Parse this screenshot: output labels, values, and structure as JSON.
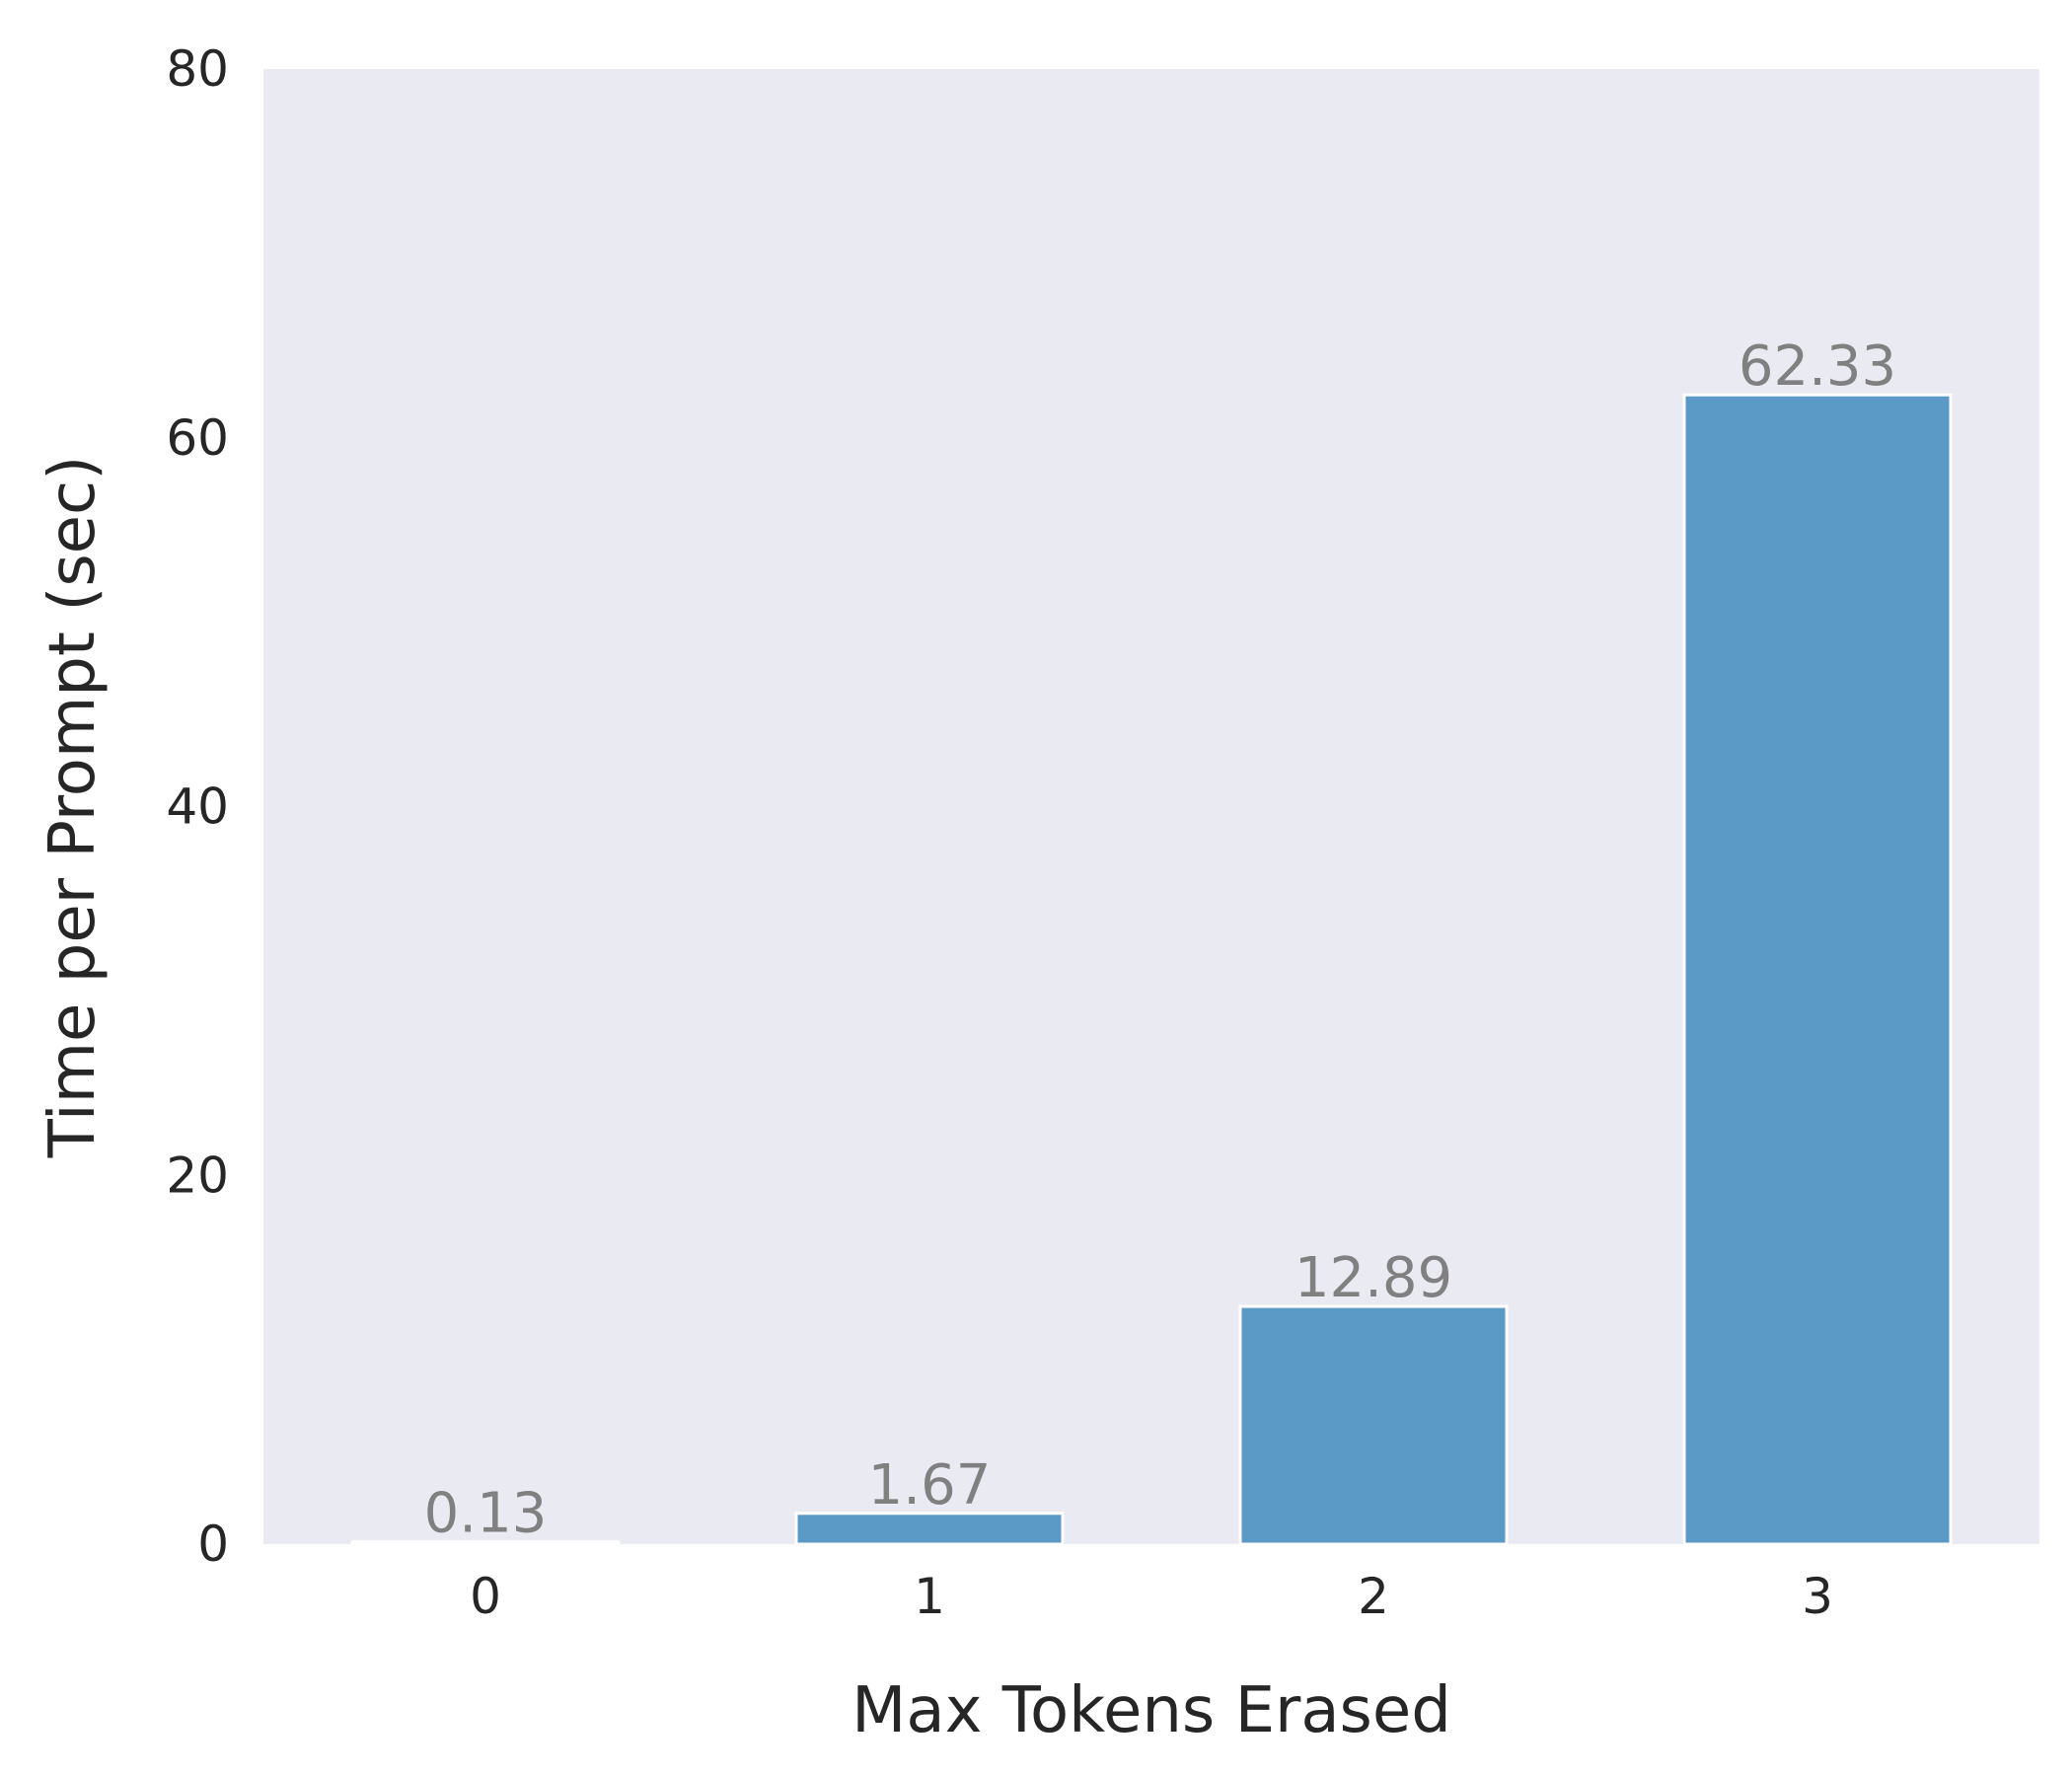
{
  "chart_data": {
    "type": "bar",
    "title": "",
    "xlabel": "Max Tokens Erased",
    "ylabel": "Time per Prompt (sec)",
    "categories": [
      "0",
      "1",
      "2",
      "3"
    ],
    "values": [
      0.13,
      1.67,
      12.89,
      62.33
    ],
    "data_labels": [
      "0.13",
      "1.67",
      "12.89",
      "62.33"
    ],
    "ylim": [
      0,
      80
    ],
    "yticks": [
      0,
      20,
      40,
      60,
      80
    ],
    "ytick_labels": [
      "0",
      "20",
      "40",
      "60",
      "80"
    ],
    "grid": false,
    "legend": "none"
  },
  "colors": {
    "bar": "#5b9ac7",
    "bar_edge": "#ffffff",
    "plot_background": "#eaeaf2",
    "data_label": "#808080",
    "text": "#262626"
  }
}
